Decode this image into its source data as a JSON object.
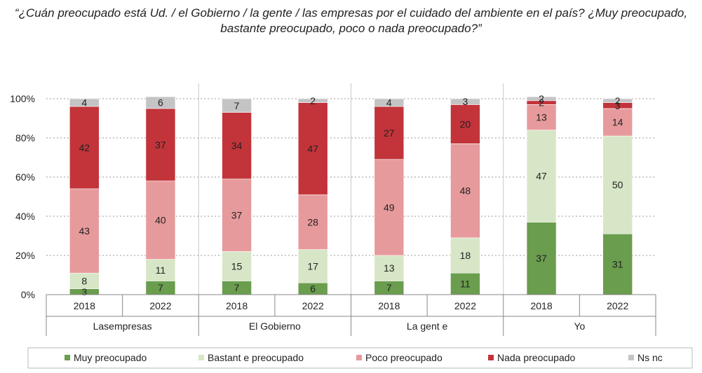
{
  "title": "“¿Cuán preocupado está Ud. / el Gobierno / la gente / las empresas por el cuidado del ambiente en el país? ¿Muy preocupado, bastante preocupado, poco o nada preocupado?”",
  "colors": {
    "Muy preocupado": "#6a9d4d",
    "Bastante preocupado": "#d7e6c6",
    "Poco preocupado": "#e79a9c",
    "Nada preocupado": "#c2343a",
    "Ns nc": "#c4c4c4"
  },
  "chart_data": {
    "type": "bar",
    "stacked": true,
    "ylim": [
      0,
      100
    ],
    "yticks": [
      "0%",
      "20%",
      "40%",
      "60%",
      "80%",
      "100%"
    ],
    "groups": [
      "Las empresas",
      "El Gobierno",
      "La gente",
      "Yo"
    ],
    "group_labels": [
      "Lasempresas",
      "El Gobierno",
      "La gent e",
      "Yo"
    ],
    "categories": [
      "2018",
      "2022",
      "2018",
      "2022",
      "2018",
      "2022",
      "2018",
      "2022"
    ],
    "series": [
      {
        "name": "Muy preocupado",
        "legend": "Muy preocupado",
        "values": [
          3,
          7,
          7,
          6,
          7,
          11,
          37,
          31
        ]
      },
      {
        "name": "Bastante preocupado",
        "legend": "Bastant e preocupado",
        "values": [
          8,
          11,
          15,
          17,
          13,
          18,
          47,
          50
        ]
      },
      {
        "name": "Poco preocupado",
        "legend": "Poco preocupado",
        "values": [
          43,
          40,
          37,
          28,
          49,
          48,
          13,
          14
        ]
      },
      {
        "name": "Nada preocupado",
        "legend": "Nada preocupado",
        "values": [
          42,
          37,
          34,
          47,
          27,
          20,
          2,
          3
        ]
      },
      {
        "name": "Ns nc",
        "legend": "Ns nc",
        "values": [
          4,
          6,
          7,
          2,
          4,
          3,
          2,
          2
        ]
      }
    ]
  }
}
